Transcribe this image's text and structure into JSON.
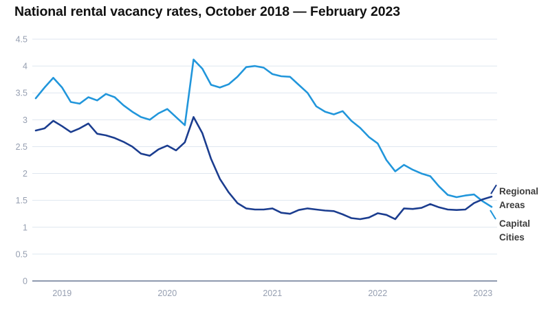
{
  "title": "National rental vacancy rates, October 2018 — February 2023",
  "colors": {
    "capital_cities_line": "#2196DB",
    "regional_areas_line": "#1B3D8F",
    "grid_line": "#DEE6EF",
    "axis_baseline": "#8E99AE",
    "tick_label": "#959EB0",
    "annotation_text": "#3C3C3C",
    "title_text": "#111111",
    "background": "#FFFFFF"
  },
  "chart_data": {
    "type": "line",
    "title": "National rental vacancy rates, October 2018 — February 2023",
    "x_start": "Oct 2018",
    "x_end": "Feb 2023",
    "interval": "monthly",
    "x_tick_labels": [
      "2019",
      "2020",
      "2021",
      "2022",
      "2023"
    ],
    "y_ticks": [
      0,
      0.5,
      1,
      1.5,
      2,
      2.5,
      3,
      3.5,
      4,
      4.5
    ],
    "y_tick_labels": [
      "0",
      "0.5",
      "1",
      "1.5",
      "2",
      "2.5",
      "3",
      "3.5",
      "4",
      "4.5"
    ],
    "ylim": [
      0,
      4.5
    ],
    "grid": "horizontal-only",
    "legend_position": "end-of-line-labels",
    "series": [
      {
        "name": "Capital Cities",
        "color": "#2196DB",
        "values": [
          3.4,
          3.6,
          3.78,
          3.6,
          3.33,
          3.3,
          3.42,
          3.36,
          3.48,
          3.42,
          3.27,
          3.15,
          3.05,
          3.0,
          3.12,
          3.2,
          3.05,
          2.9,
          4.12,
          3.95,
          3.65,
          3.6,
          3.66,
          3.8,
          3.98,
          4.0,
          3.97,
          3.85,
          3.81,
          3.8,
          3.65,
          3.5,
          3.25,
          3.15,
          3.1,
          3.16,
          2.98,
          2.85,
          2.68,
          2.56,
          2.25,
          2.04,
          2.16,
          2.07,
          2.0,
          1.95,
          1.76,
          1.6,
          1.56,
          1.59,
          1.61,
          1.48,
          1.38
        ]
      },
      {
        "name": "Regional Areas",
        "color": "#1B3D8F",
        "values": [
          2.8,
          2.84,
          2.98,
          2.88,
          2.77,
          2.84,
          2.93,
          2.74,
          2.71,
          2.66,
          2.59,
          2.5,
          2.37,
          2.33,
          2.45,
          2.52,
          2.43,
          2.58,
          3.05,
          2.75,
          2.27,
          1.9,
          1.65,
          1.45,
          1.35,
          1.33,
          1.33,
          1.35,
          1.27,
          1.25,
          1.32,
          1.35,
          1.33,
          1.31,
          1.3,
          1.24,
          1.17,
          1.15,
          1.18,
          1.26,
          1.23,
          1.15,
          1.35,
          1.34,
          1.36,
          1.43,
          1.37,
          1.33,
          1.32,
          1.33,
          1.45,
          1.52,
          1.57
        ]
      }
    ],
    "annotations": [
      {
        "series": "Regional Areas",
        "lines": [
          "Regional",
          "Areas"
        ],
        "direction": "up"
      },
      {
        "series": "Capital Cities",
        "lines": [
          "Capital",
          "Cities"
        ],
        "direction": "down"
      }
    ]
  }
}
